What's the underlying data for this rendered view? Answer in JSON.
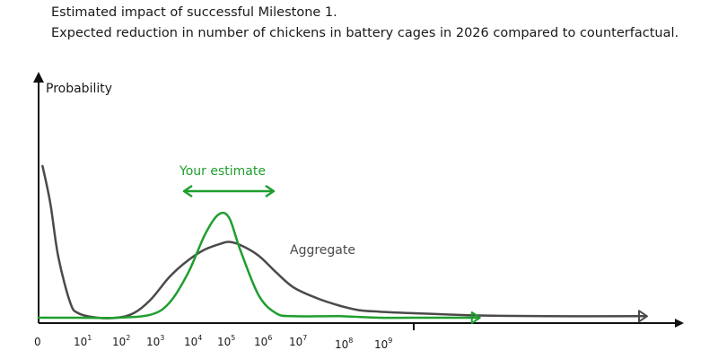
{
  "chart_data": {
    "type": "line",
    "title": "Estimated impact of successful Milestone 1.",
    "subtitle": "Expected reduction in number of chickens in battery cages in 2026 compared to counterfactual.",
    "ylabel": "Probability",
    "xlabel": "",
    "x_ticks": [
      {
        "base": "0",
        "exp": ""
      },
      {
        "base": "10",
        "exp": "1"
      },
      {
        "base": "10",
        "exp": "2"
      },
      {
        "base": "10",
        "exp": "3"
      },
      {
        "base": "10",
        "exp": "4"
      },
      {
        "base": "10",
        "exp": "5"
      },
      {
        "base": "10",
        "exp": "6"
      },
      {
        "base": "10",
        "exp": "7"
      },
      {
        "base": "10",
        "exp": "8"
      },
      {
        "base": "10",
        "exp": "9"
      }
    ],
    "series": [
      {
        "name": "Aggregate",
        "color": "#4a4a4a",
        "x": [
          0,
          0.1,
          0.3,
          0.5,
          0.8,
          1.0,
          1.5,
          2.0,
          2.5,
          3.0,
          3.5,
          4.0,
          4.5,
          5.0,
          5.2,
          5.5,
          6.0,
          6.5,
          7.0,
          7.5,
          8.0,
          8.5,
          9.0,
          10.0,
          12.0,
          14.0,
          17.0
        ],
        "y": [
          0.0,
          1.0,
          0.75,
          0.4,
          0.1,
          0.03,
          0.0,
          0.0,
          0.03,
          0.12,
          0.27,
          0.38,
          0.45,
          0.49,
          0.5,
          0.48,
          0.41,
          0.3,
          0.2,
          0.13,
          0.08,
          0.05,
          0.04,
          0.03,
          0.015,
          0.01,
          0.01
        ]
      },
      {
        "name": "Your estimate",
        "color": "#1f9e2e",
        "x": [
          0,
          1.0,
          2.0,
          3.0,
          3.5,
          4.0,
          4.5,
          4.9,
          5.2,
          5.5,
          6.0,
          6.5,
          7.0,
          8.0,
          9.0,
          10.0,
          12.0
        ],
        "y": [
          0.0,
          0.0,
          0.0,
          0.02,
          0.1,
          0.3,
          0.55,
          0.68,
          0.66,
          0.45,
          0.15,
          0.03,
          0.01,
          0.01,
          0.0,
          0.0,
          0.0
        ]
      }
    ],
    "xlim": [
      0,
      17.5
    ],
    "ylim": [
      0,
      1.0
    ],
    "grid": false,
    "legend": "none",
    "annotations": [
      {
        "text": "Your estimate",
        "color": "#1f9e2e",
        "note": "double-headed arrow"
      },
      {
        "text": "Aggregate",
        "color": "#4a4a4a"
      }
    ]
  }
}
